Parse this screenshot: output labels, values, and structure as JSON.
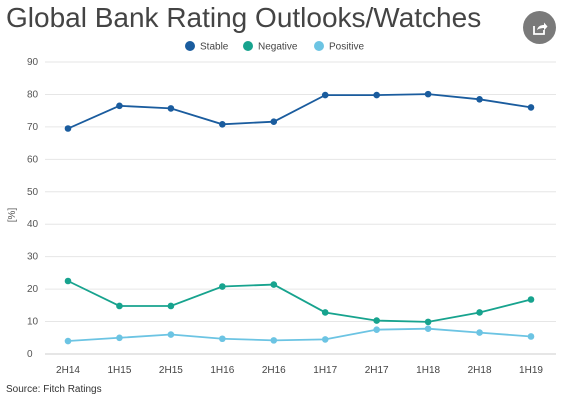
{
  "header": {
    "title": "Global Bank Rating Outlooks/Watches",
    "share_icon": "share-icon"
  },
  "source": "Source: Fitch Ratings",
  "chart_data": {
    "type": "line",
    "title": "Global Bank Rating Outlooks/Watches",
    "xlabel": "",
    "ylabel": "[%]",
    "categories": [
      "2H14",
      "1H15",
      "2H15",
      "1H16",
      "2H16",
      "1H17",
      "2H17",
      "1H18",
      "2H18",
      "1H19"
    ],
    "yticks": [
      0,
      10,
      20,
      30,
      40,
      50,
      60,
      70,
      80,
      90
    ],
    "ylim": [
      0,
      90
    ],
    "grid": true,
    "legend": "top-center",
    "series": [
      {
        "name": "Stable",
        "color": "#1a5c9e",
        "values": [
          69.5,
          76.5,
          75.7,
          70.8,
          71.6,
          79.8,
          79.8,
          80.1,
          78.5,
          76.0
        ]
      },
      {
        "name": "Negative",
        "color": "#17a38e",
        "values": [
          22.5,
          14.8,
          14.8,
          20.8,
          21.4,
          12.8,
          10.3,
          9.9,
          12.8,
          16.8
        ]
      },
      {
        "name": "Positive",
        "color": "#6cc4e3",
        "values": [
          4.0,
          5.0,
          6.0,
          4.7,
          4.2,
          4.5,
          7.5,
          7.8,
          6.6,
          5.4
        ]
      }
    ]
  }
}
